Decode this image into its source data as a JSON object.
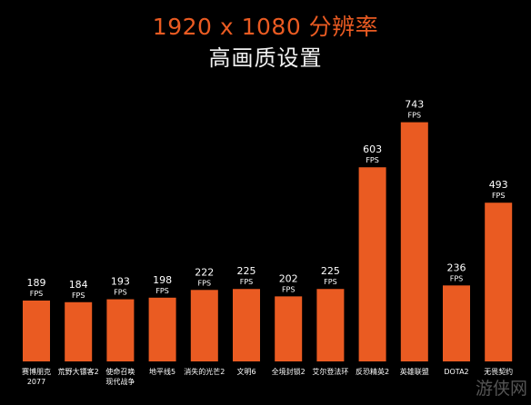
{
  "header": {
    "title": "1920 x 1080 分辨率",
    "subtitle": "高画质设置"
  },
  "colors": {
    "bar": "#ea5b22",
    "label": "#ffffff",
    "background": "#000000"
  },
  "chart_data": {
    "type": "bar",
    "title": "1920 x 1080 分辨率",
    "subtitle": "高画质设置",
    "unit": "FPS",
    "categories": [
      [
        "赛博朋克",
        "2077"
      ],
      [
        "荒野大镖客2"
      ],
      [
        "使命召唤",
        "现代战争"
      ],
      [
        "地平线5"
      ],
      [
        "消失的光芒2"
      ],
      [
        "文明6"
      ],
      [
        "全境封锁2"
      ],
      [
        "艾尔登法环"
      ],
      [
        "反恐精英2"
      ],
      [
        "英雄联盟"
      ],
      [
        "DOTA2"
      ],
      [
        "无畏契约"
      ]
    ],
    "values": [
      189,
      184,
      193,
      198,
      222,
      225,
      202,
      225,
      603,
      743,
      236,
      493
    ],
    "ylim": [
      0,
      800
    ],
    "grid": false,
    "legend": "none"
  },
  "watermark": "游侠网"
}
